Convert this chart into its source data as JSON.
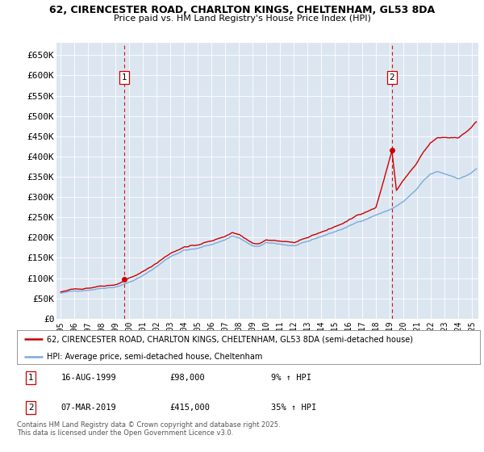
{
  "title1": "62, CIRENCESTER ROAD, CHARLTON KINGS, CHELTENHAM, GL53 8DA",
  "title2": "Price paid vs. HM Land Registry's House Price Index (HPI)",
  "legend_line1": "62, CIRENCESTER ROAD, CHARLTON KINGS, CHELTENHAM, GL53 8DA (semi-detached house)",
  "legend_line2": "HPI: Average price, semi-detached house, Cheltenham",
  "footnote": "Contains HM Land Registry data © Crown copyright and database right 2025.\nThis data is licensed under the Open Government Licence v3.0.",
  "marker1_label": "1",
  "marker1_date": "16-AUG-1999",
  "marker1_price": "£98,000",
  "marker1_hpi": "9% ↑ HPI",
  "marker2_label": "2",
  "marker2_date": "07-MAR-2019",
  "marker2_price": "£415,000",
  "marker2_hpi": "35% ↑ HPI",
  "bg_color": "#dce6f1",
  "red_color": "#cc0000",
  "blue_color": "#7aabdb",
  "ylim": [
    0,
    680000
  ],
  "yticks": [
    0,
    50000,
    100000,
    150000,
    200000,
    250000,
    300000,
    350000,
    400000,
    450000,
    500000,
    550000,
    600000,
    650000
  ],
  "ytick_labels": [
    "£0",
    "£50K",
    "£100K",
    "£150K",
    "£200K",
    "£250K",
    "£300K",
    "£350K",
    "£400K",
    "£450K",
    "£500K",
    "£550K",
    "£600K",
    "£650K"
  ],
  "sale1_year": 1999.62,
  "sale1_y": 98000,
  "sale2_year": 2019.17,
  "sale2_y": 415000,
  "xmin": 1994.7,
  "xmax": 2025.5
}
